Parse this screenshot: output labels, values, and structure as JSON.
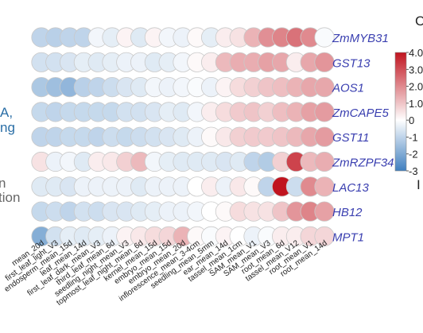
{
  "chart_data": {
    "type": "heatmap",
    "title": "",
    "xlabel": "",
    "ylabel": "",
    "rows": [
      "ZmMYB31",
      "GST13",
      "AOS1",
      "ZmCAPE5",
      "GST11",
      "ZmRZPF34",
      "LAC13",
      "HB12",
      "MPT1"
    ],
    "x_tick_labels": [
      "mean_20d",
      "first_leaf_light_V3",
      "endosperm_mean_15d",
      "leaf_mean_14d",
      "first_leaf_dark_mean_V3",
      "third_leaf_mean_6d",
      "seedling_night_mean_V3",
      "topmost_leaf_night_mean_6d",
      "kernel_mean_15d",
      "embryo_mean_15d",
      "embryo_mean_20d",
      "inflorescence_mean_3-4cm",
      "seedling_mean_5mm",
      "ear_mean_14d",
      "tassel_mean_1cm",
      "SAM_mean_V1",
      "SAM_mean_V3",
      "root_mean_6d",
      "tassel_mean_V12",
      "root_mean_V1",
      "root_mean_14d"
    ],
    "values": [
      [
        -1.0,
        -1.1,
        -1.0,
        -1.0,
        -0.2,
        -0.4,
        0.2,
        -0.5,
        0.2,
        -0.2,
        -0.3,
        0.1,
        -0.4,
        0.3,
        0.5,
        1.3,
        1.9,
        2.1,
        2.4,
        2.0,
        -0.1
      ],
      [
        -0.7,
        -0.7,
        -0.6,
        -0.4,
        -0.5,
        -0.4,
        -0.3,
        -0.3,
        -0.5,
        -0.4,
        -0.2,
        0.1,
        0.3,
        1.2,
        1.4,
        1.4,
        1.6,
        1.5,
        0.3,
        1.5,
        1.8
      ],
      [
        -1.3,
        -1.5,
        -1.7,
        -1.1,
        -1.0,
        -0.8,
        -0.6,
        -0.5,
        -0.2,
        -0.3,
        -0.2,
        -0.1,
        -0.3,
        0.2,
        0.6,
        0.8,
        1.0,
        1.1,
        1.3,
        1.5,
        1.5
      ],
      [
        -0.9,
        -1.0,
        -0.9,
        -0.9,
        -0.9,
        -0.9,
        -0.7,
        -0.7,
        -0.6,
        -0.4,
        -0.5,
        -0.2,
        0.3,
        0.6,
        0.9,
        1.0,
        0.8,
        1.1,
        1.3,
        1.6,
        1.7
      ],
      [
        -1.0,
        -1.0,
        -0.9,
        -0.9,
        -1.0,
        -0.8,
        -0.9,
        -0.8,
        -0.7,
        -0.6,
        -0.5,
        -0.3,
        0.1,
        0.4,
        0.8,
        0.9,
        0.9,
        1.0,
        1.2,
        1.5,
        1.7
      ],
      [
        0.5,
        -0.3,
        -0.2,
        -0.5,
        0.3,
        0.4,
        0.8,
        1.2,
        -0.2,
        -0.4,
        -0.5,
        -0.5,
        -0.5,
        -0.6,
        -0.5,
        -1.0,
        -1.2,
        0.8,
        3.2,
        1.2,
        1.4
      ],
      [
        -0.5,
        -0.5,
        -0.6,
        -0.3,
        -0.3,
        -0.3,
        -0.3,
        -0.5,
        -0.3,
        -0.3,
        -0.3,
        0.0,
        0.3,
        -0.3,
        0.4,
        0.1,
        -1.0,
        4.0,
        -0.8,
        2.0,
        1.3
      ],
      [
        -0.9,
        -0.8,
        -1.0,
        -0.7,
        -0.8,
        -0.6,
        -0.6,
        -0.5,
        -0.4,
        -0.3,
        -0.3,
        -0.2,
        0.0,
        0.1,
        0.6,
        0.5,
        0.5,
        1.0,
        1.8,
        2.1,
        1.6
      ],
      [
        -1.9,
        -0.7,
        -0.4,
        -0.5,
        -0.4,
        -0.3,
        0.2,
        0.4,
        0.6,
        0.7,
        1.3,
        0.1,
        -0.1,
        0.2,
        0.0,
        -0.3,
        -0.1,
        0.3,
        0.3,
        0.7,
        0.7
      ]
    ],
    "colorbar": {
      "ticks": [
        "4.0",
        "3.0",
        "2.0",
        "1.0",
        "0",
        "-1",
        "-2",
        "-3"
      ],
      "min": -3,
      "max": 4
    },
    "colors": {
      "low": "#3f7fbf",
      "mid": "#ffffff",
      "high": "#c0141f"
    }
  },
  "edge_text": {
    "left": [
      "A,",
      "ng",
      "n",
      "tion"
    ],
    "right": [
      "C",
      "I"
    ]
  }
}
